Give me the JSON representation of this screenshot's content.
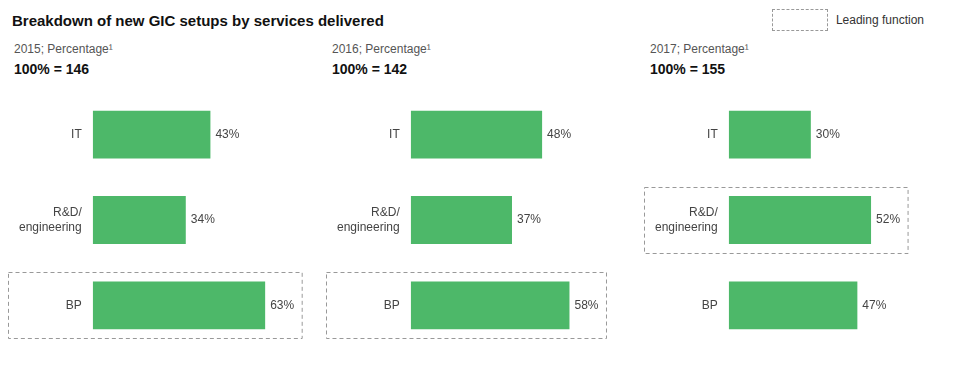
{
  "title": "Breakdown of new GIC setups by services delivered",
  "legend": "upper right",
  "legend_label": "Leading function",
  "chart_data": [
    {
      "type": "bar",
      "orientation": "horizontal",
      "subtitle": "2015; Percentage¹",
      "annotations": [
        "100% = 146"
      ],
      "categories": [
        "IT",
        "R&D/\nengineering",
        "BP"
      ],
      "values": [
        43,
        34,
        63
      ],
      "value_labels": [
        "43%",
        "34%",
        "63%"
      ],
      "data_labels": true,
      "color": "#4db869",
      "xlim": [
        0,
        75
      ],
      "grid": false,
      "tick_labels": "y",
      "highlight": [
        "BP"
      ]
    },
    {
      "type": "bar",
      "orientation": "horizontal",
      "subtitle": "2016; Percentage¹",
      "annotations": [
        "100% = 142"
      ],
      "categories": [
        "IT",
        "R&D/\nengineering",
        "BP"
      ],
      "values": [
        48,
        37,
        58
      ],
      "value_labels": [
        "48%",
        "37%",
        "58%"
      ],
      "data_labels": true,
      "color": "#4db869",
      "xlim": [
        0,
        75
      ],
      "grid": false,
      "tick_labels": "y",
      "highlight": [
        "BP"
      ]
    },
    {
      "type": "bar",
      "orientation": "horizontal",
      "subtitle": "2017; Percentage¹",
      "annotations": [
        "100% = 155"
      ],
      "categories": [
        "IT",
        "R&D/\nengineering",
        "BP"
      ],
      "values": [
        30,
        52,
        47
      ],
      "value_labels": [
        "30%",
        "52%",
        "47%"
      ],
      "data_labels": true,
      "color": "#4db869",
      "xlim": [
        0,
        75
      ],
      "grid": false,
      "tick_labels": "y",
      "highlight": [
        "R&D/\nengineering"
      ]
    }
  ]
}
